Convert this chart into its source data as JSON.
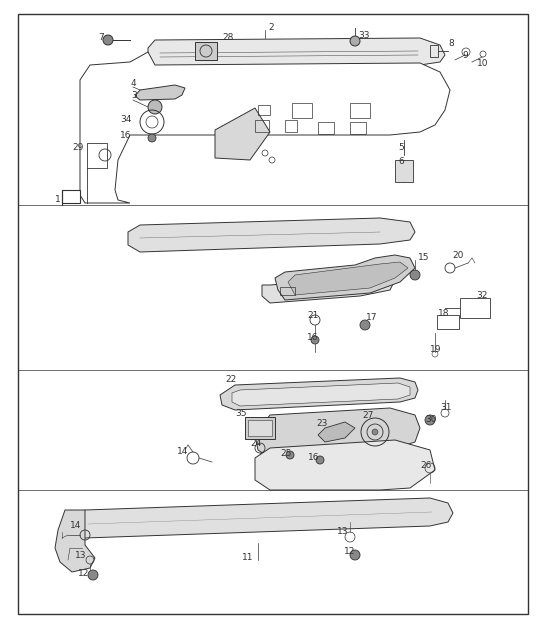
{
  "bg_color": "#ffffff",
  "line_color": "#333333",
  "gray_light": "#e0e0e0",
  "gray_mid": "#c8c8c8",
  "gray_dark": "#999999",
  "fig_width": 5.45,
  "fig_height": 6.28,
  "dpi": 100
}
